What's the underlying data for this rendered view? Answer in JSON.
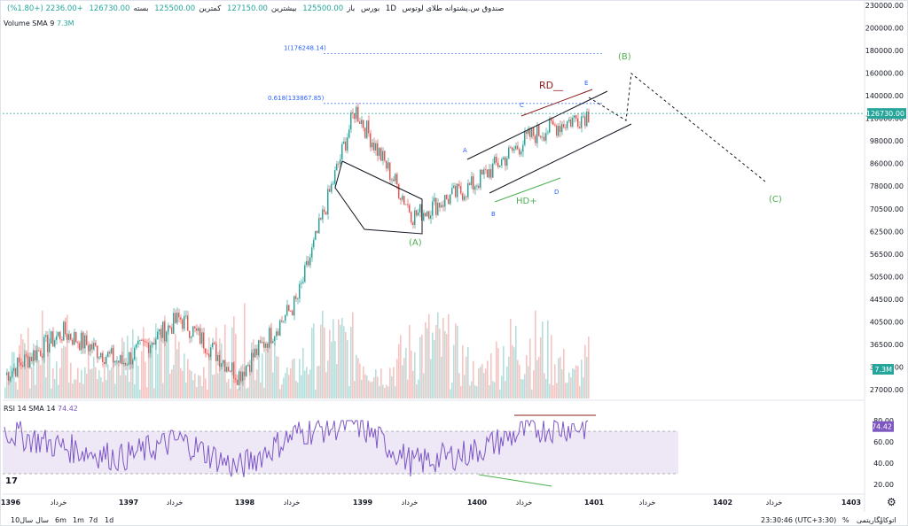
{
  "header": {
    "title": "صندوق س.پشتوانه طلای لوتوس",
    "interval": "1D",
    "exchange": "بورس",
    "open_label": "باز",
    "open": "125500.00",
    "high_label": "بیشترین",
    "high": "127150.00",
    "low_label": "کمترین",
    "low": "125500.00",
    "close_label": "بسته",
    "close": "126730.00",
    "change": "+2236.00 (+1.80%)"
  },
  "volume_legend": {
    "label": "Volume SMA 9",
    "value": "7.3M"
  },
  "rsi_legend": {
    "label": "RSI 14 SMA 14",
    "value": "74.42"
  },
  "price_axis": {
    "ticks": [
      "230000.00",
      "200000.00",
      "180000.00",
      "160000.00",
      "140000.00",
      "110000.00",
      "98000.00",
      "86000.00",
      "78000.00",
      "70500.00",
      "62500.00",
      "56500.00",
      "50500.00",
      "44500.00",
      "40500.00",
      "36500.00",
      "33000.00",
      "27000.00"
    ],
    "current": "126730.00",
    "volume_badge": "7.3M"
  },
  "rsi_axis": {
    "ticks": [
      "80.00",
      "60.00",
      "40.00",
      "20.00"
    ],
    "current": "74.42"
  },
  "time_axis": {
    "labels": [
      "1396",
      "خرداد",
      "1397",
      "خرداد",
      "1398",
      "خرداد",
      "1399",
      "خرداد",
      "1400",
      "خرداد",
      "1401",
      "خرداد",
      "1402",
      "خرداد",
      "1403"
    ]
  },
  "annotations": {
    "fib1": "1(176248.14)",
    "fib618": "0.618(133867.85)",
    "RD": "RD__",
    "HD": "HD+",
    "A": "(A)",
    "B": "(B)",
    "C": "(C)",
    "a": "A",
    "b": "B",
    "c": "C",
    "d": "D",
    "e": "E"
  },
  "toolbar": {
    "ranges": [
      "1d",
      "7d",
      "1m",
      "6m",
      "سال",
      "10سال"
    ],
    "clock": "23:30:46 (UTC+3:30)",
    "percent": "%",
    "log": "لگاریتمی",
    "auto": "اتوکار",
    "tv": "17"
  },
  "colors": {
    "up": "#26a69a",
    "down": "#ef5350",
    "rsi": "#7e57c2",
    "rsi_band": "#ede7f6",
    "accent": "#2962ff",
    "wave": "#4caf50",
    "rd": "#8b1a1a"
  },
  "chart_data": {
    "type": "line",
    "x": [
      "1396",
      "1396-خرداد",
      "1397",
      "1397-خرداد",
      "1398",
      "1398-خرداد",
      "1399",
      "1399-خرداد",
      "1400",
      "1400-خرداد",
      "1401"
    ],
    "series": [
      {
        "values": [
          30000,
          38000,
          32000,
          41000,
          30000,
          45000,
          130000,
          72000,
          85000,
          112000,
          126730
        ]
      }
    ],
    "ylim": [
      27000,
      230000
    ],
    "rsi": {
      "values": [
        70,
        55,
        45,
        62,
        35,
        68,
        78,
        40,
        50,
        72,
        74.42
      ],
      "ylim": [
        20,
        80
      ],
      "band": [
        30,
        70
      ]
    }
  }
}
